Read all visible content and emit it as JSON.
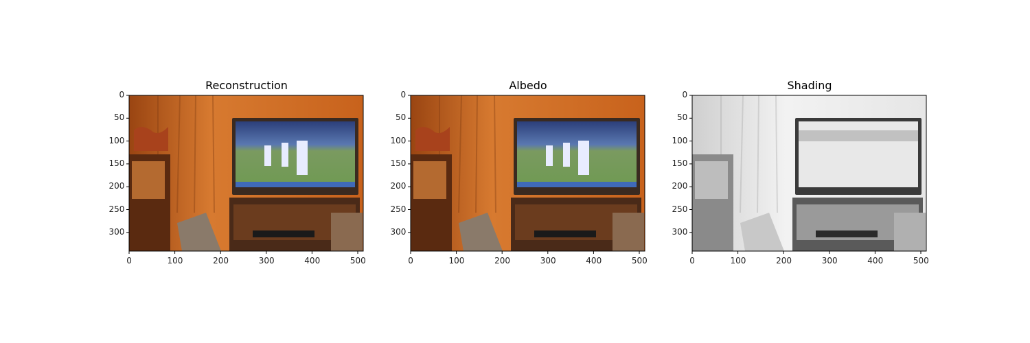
{
  "panels": [
    {
      "title": "Reconstruction"
    },
    {
      "title": "Albedo"
    },
    {
      "title": "Shading"
    }
  ],
  "axes": {
    "y_ticks": [
      "0",
      "50",
      "100",
      "150",
      "200",
      "250",
      "300"
    ],
    "x_ticks": [
      "0",
      "100",
      "200",
      "300",
      "400",
      "500"
    ]
  },
  "colors": {
    "wall": "#c8621c",
    "curtain": "#d77a30",
    "tv_frame": "#3a2a20",
    "screen_field": "#6f9a52",
    "screen_sky": "#2c3f7a",
    "shading_bg": "#eeeeee"
  }
}
